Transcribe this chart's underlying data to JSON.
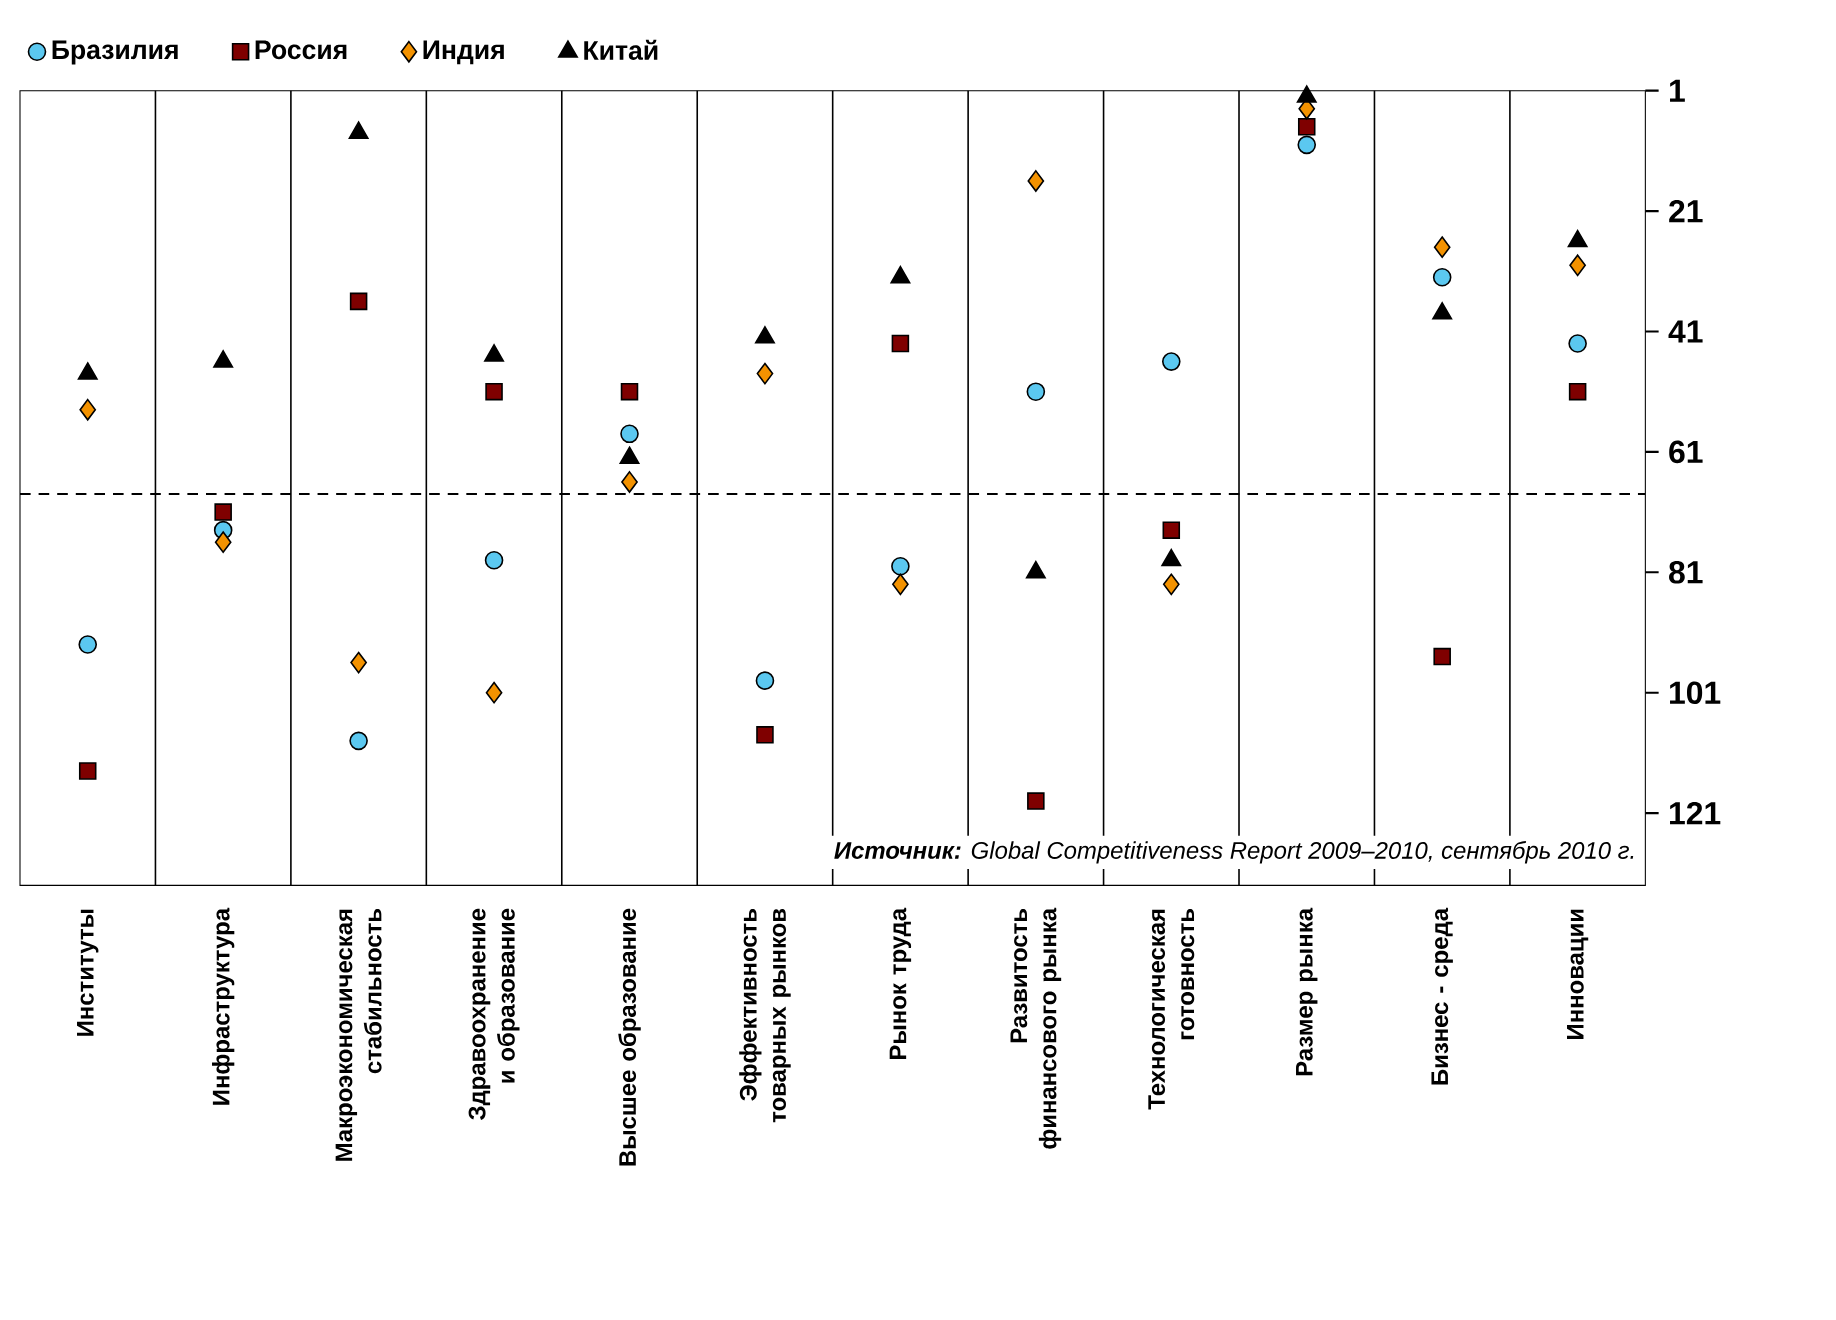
{
  "chart_data": {
    "type": "scatter",
    "categories": [
      "Институты",
      "Инфраструктура",
      "Макроэкономическая стабильность",
      "Здравоохранение и образование",
      "Высшее образование",
      "Эффективность товарных рынков",
      "Рынок труда",
      "Развитость финансового рынка",
      "Технологическая готовность",
      "Размер рынка",
      "Бизнес - среда",
      "Инновации"
    ],
    "series": [
      {
        "name": "Бразилия",
        "color": "#5bc8f0",
        "marker": "circle",
        "values": [
          93,
          74,
          109,
          79,
          58,
          99,
          80,
          51,
          46,
          10,
          32,
          43
        ]
      },
      {
        "name": "Россия",
        "color": "#7f0000",
        "marker": "square",
        "values": [
          114,
          71,
          36,
          51,
          51,
          108,
          43,
          119,
          74,
          7,
          95,
          51
        ]
      },
      {
        "name": "Индия",
        "color": "#f39200",
        "marker": "diamond",
        "values": [
          54,
          76,
          96,
          101,
          66,
          48,
          83,
          16,
          83,
          4,
          27,
          30
        ]
      },
      {
        "name": "Китай",
        "color": "#000000",
        "marker": "triangle",
        "values": [
          48,
          46,
          8,
          45,
          62,
          42,
          32,
          81,
          79,
          2,
          38,
          26
        ]
      }
    ],
    "ylim": [
      133,
      1
    ],
    "yticks": [
      1,
      21,
      41,
      61,
      81,
      101,
      121
    ],
    "grid": "x",
    "legend": "top",
    "ref_lines": [
      {
        "axis": "y",
        "value": 68,
        "line_style": "dashed"
      }
    ],
    "annotations": [
      "**Источник:** Global Competitiveness Report 2009–2010, сентябрь 2010 г."
    ]
  }
}
